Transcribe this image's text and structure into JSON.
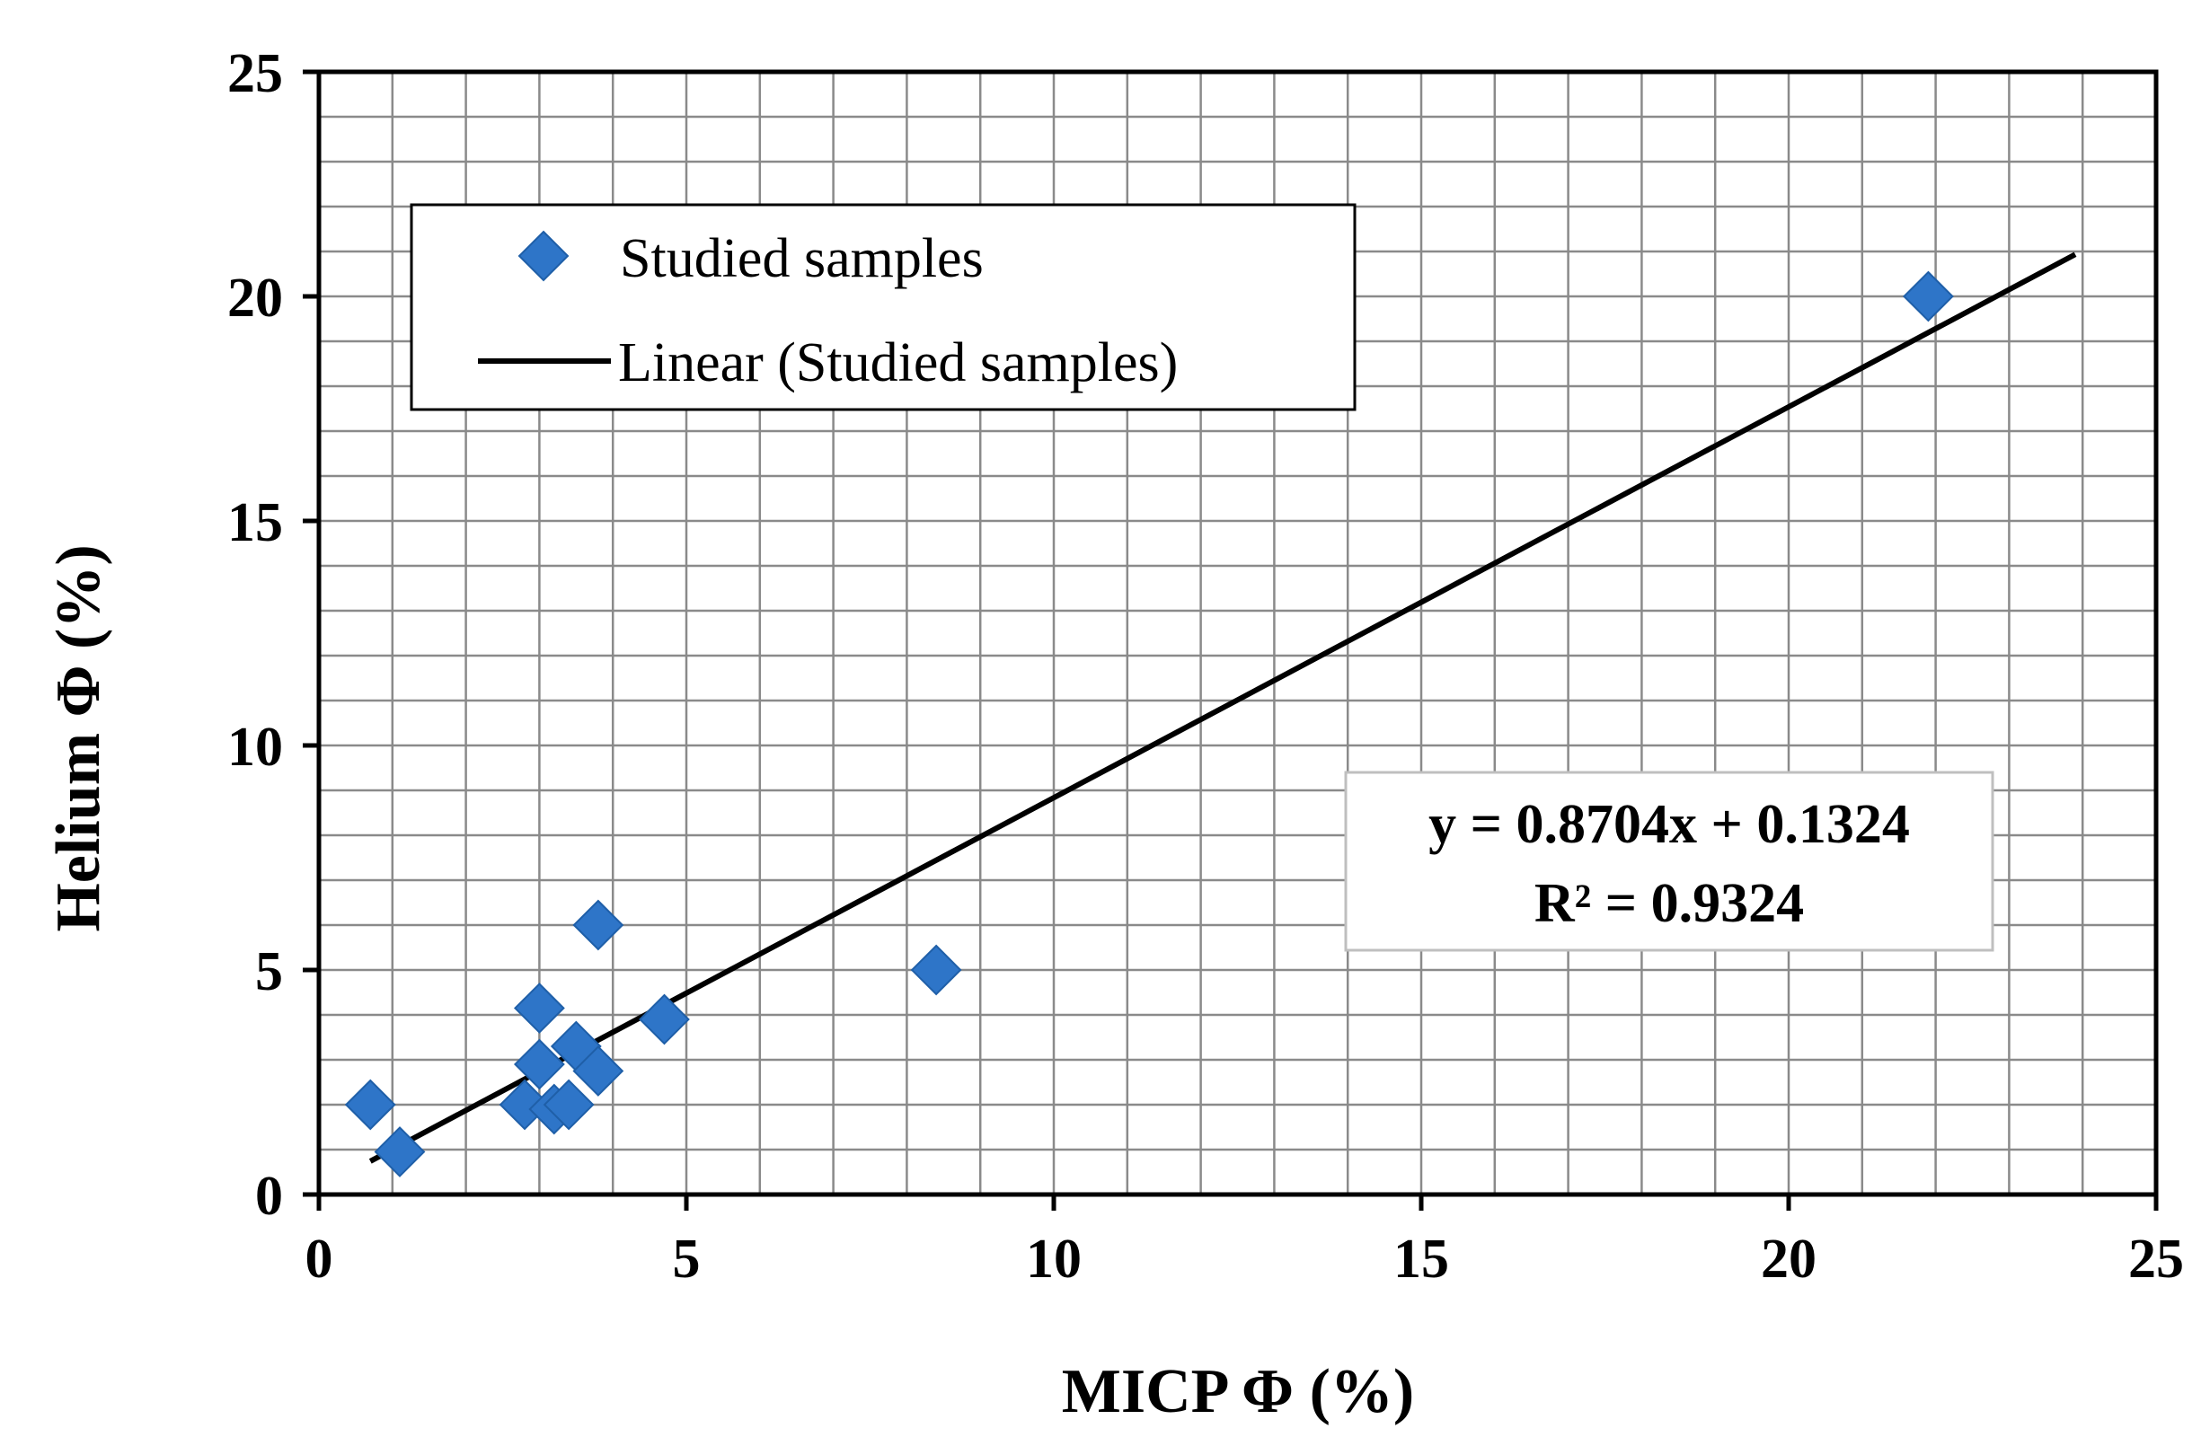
{
  "chart_data": {
    "type": "scatter",
    "title": "",
    "xlabel": "MICP Φ (%)",
    "ylabel": "Helium Φ (%)",
    "xlim": [
      0,
      25
    ],
    "ylim": [
      0,
      25
    ],
    "xticks": [
      0,
      5,
      10,
      15,
      20,
      25
    ],
    "yticks": [
      0,
      5,
      10,
      15,
      20,
      25
    ],
    "grid_step": 1,
    "grid": true,
    "legend_position": "top-left",
    "series": [
      {
        "name": "Studied samples",
        "marker": "diamond",
        "color": "#2e75c8",
        "points": [
          {
            "x": 0.7,
            "y": 2.0
          },
          {
            "x": 1.1,
            "y": 0.95
          },
          {
            "x": 2.8,
            "y": 2.0
          },
          {
            "x": 3.0,
            "y": 2.9
          },
          {
            "x": 3.0,
            "y": 4.15
          },
          {
            "x": 3.2,
            "y": 1.9
          },
          {
            "x": 3.4,
            "y": 2.0
          },
          {
            "x": 3.5,
            "y": 3.3
          },
          {
            "x": 3.8,
            "y": 2.75
          },
          {
            "x": 3.8,
            "y": 6.0
          },
          {
            "x": 4.7,
            "y": 3.9
          },
          {
            "x": 8.4,
            "y": 5.0
          },
          {
            "x": 21.9,
            "y": 20.0
          }
        ]
      }
    ],
    "trendline": {
      "name": "Linear (Studied samples)",
      "color": "#000000",
      "slope": 0.8704,
      "intercept": 0.1324,
      "x_start": 0.7,
      "x_end": 23.9
    },
    "annotation": {
      "equation": "y = 0.8704x + 0.1324",
      "r_squared": "R² = 0.9324"
    }
  }
}
